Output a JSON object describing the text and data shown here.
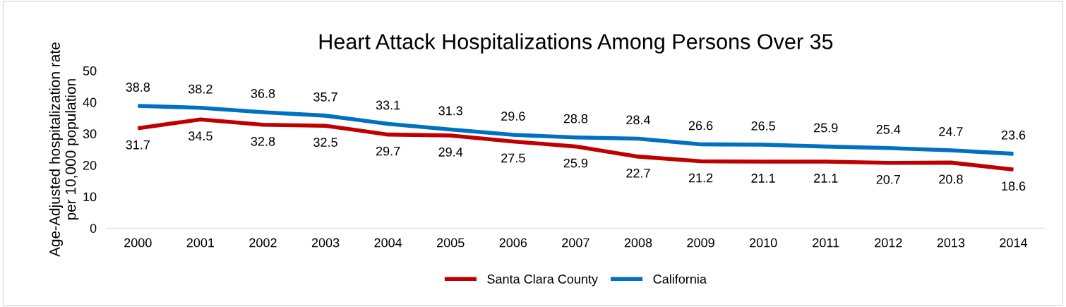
{
  "chart_data": {
    "type": "line",
    "title": "Heart Attack Hospitalizations Among Persons Over 35",
    "ylabel": "Age-Adjusted hospitalization rate\nper 10,000 population",
    "categories": [
      "2000",
      "2001",
      "2002",
      "2003",
      "2004",
      "2005",
      "2006",
      "2007",
      "2008",
      "2009",
      "2010",
      "2011",
      "2012",
      "2013",
      "2014"
    ],
    "series": [
      {
        "name": "Santa Clara County",
        "color": "#c00000",
        "values": [
          31.7,
          34.5,
          32.8,
          32.5,
          29.7,
          29.4,
          27.5,
          25.9,
          22.7,
          21.2,
          21.1,
          21.1,
          20.7,
          20.8,
          18.6
        ]
      },
      {
        "name": "California",
        "color": "#0070c0",
        "values": [
          38.8,
          38.2,
          36.8,
          35.7,
          33.1,
          31.3,
          29.6,
          28.8,
          28.4,
          26.6,
          26.5,
          25.9,
          25.4,
          24.7,
          23.6
        ]
      }
    ],
    "ylim": [
      0,
      50
    ],
    "yticks": [
      0,
      10,
      20,
      30,
      40,
      50
    ],
    "data_labels": true,
    "legend": "bottom",
    "grid": false,
    "marker": "none",
    "line_style": "solid"
  }
}
